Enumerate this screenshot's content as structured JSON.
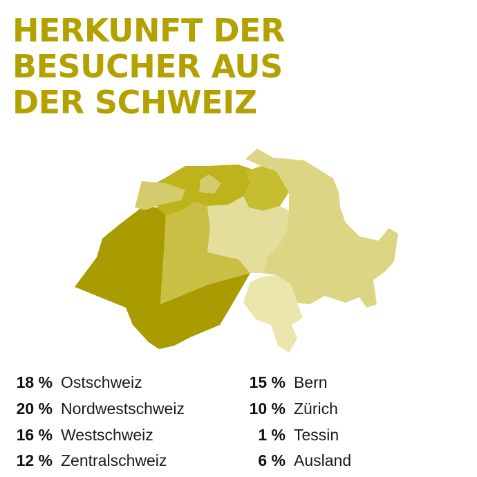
{
  "title_lines": [
    "HERKUNFT DER",
    "BESUCHER AUS",
    "DER SCHWEIZ"
  ],
  "colors": {
    "title": "#b3a100",
    "dark_olive": "#a89c00",
    "olive_mid": "#bdb31a",
    "yellow_green": "#c6bd30",
    "mustard": "#c9bf45",
    "light_olive": "#d4cb6e",
    "pale_yellow": "#dcd584",
    "paler_yellow": "#e4de9c",
    "very_pale": "#ebe6ac"
  },
  "legend_left": [
    {
      "pct": "18 %",
      "region": "Ostschweiz"
    },
    {
      "pct": "20 %",
      "region": "Nordwestschweiz"
    },
    {
      "pct": "16 %",
      "region": "Westschweiz"
    },
    {
      "pct": "12 %",
      "region": "Zentralschweiz"
    }
  ],
  "legend_right": [
    {
      "pct": "15 %",
      "region": "Bern"
    },
    {
      "pct": "10 %",
      "region": "Zürich"
    },
    {
      "pct": "1 %",
      "region": "Tessin"
    },
    {
      "pct": "6 %",
      "region": "Ausland"
    }
  ]
}
